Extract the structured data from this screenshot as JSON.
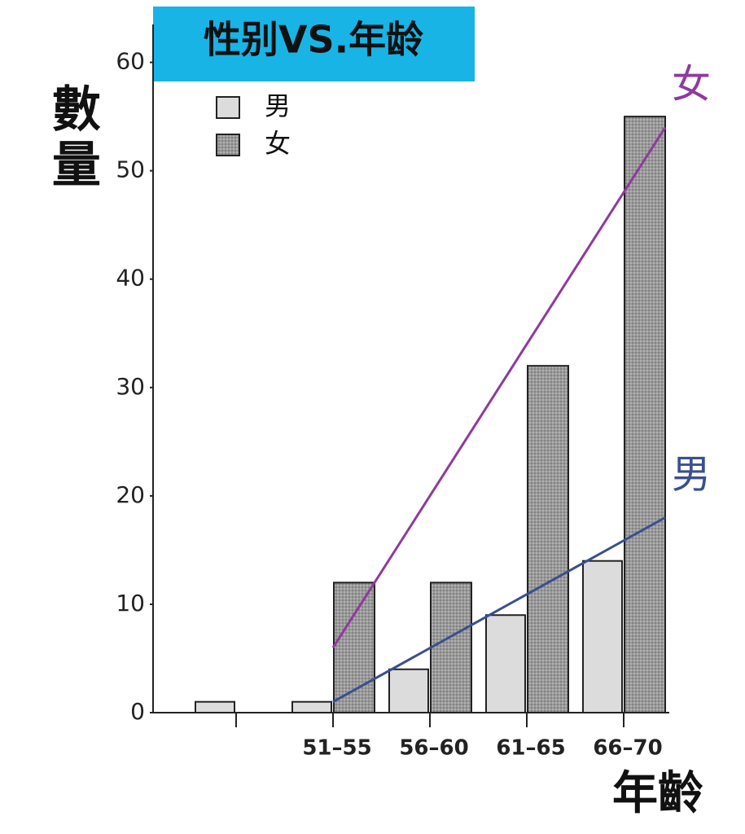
{
  "chart_data": {
    "type": "bar",
    "title": "性别VS.年龄",
    "y_label": "數量",
    "x_label": "年齡",
    "categories": [
      null,
      "51–55",
      "56–60",
      "61–65",
      "66–70"
    ],
    "series": [
      {
        "name": "男",
        "color": "#dcdcdc",
        "values": [
          1,
          1,
          4,
          9,
          14
        ]
      },
      {
        "name": "女",
        "color": "#9a9a9a",
        "values": [
          0,
          12,
          12,
          32,
          55
        ]
      }
    ],
    "trend_lines": [
      {
        "name": "女",
        "color": "#8e3a9e",
        "values": [
          6,
          54
        ]
      },
      {
        "name": "男",
        "color": "#3a4f8f",
        "values": [
          1,
          18
        ]
      }
    ],
    "ylim": [
      0,
      63.5
    ],
    "yticks": [
      0,
      10,
      20,
      30,
      40,
      50,
      60
    ],
    "grid": false,
    "legend": "top-left"
  }
}
